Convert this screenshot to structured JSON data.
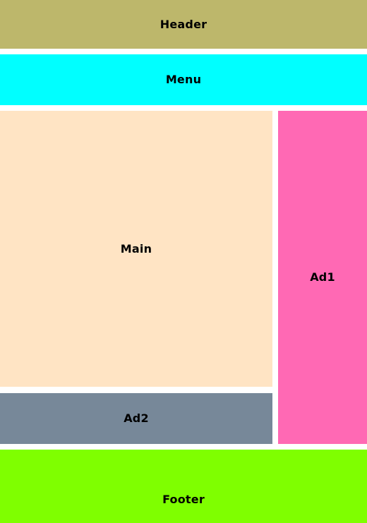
{
  "layout": {
    "header": {
      "label": "Header",
      "color": "#bdb76b"
    },
    "menu": {
      "label": "Menu",
      "color": "#00ffff"
    },
    "main": {
      "label": "Main",
      "color": "#ffe4c4"
    },
    "ad1": {
      "label": "Ad1",
      "color": "#ff69b4"
    },
    "ad2": {
      "label": "Ad2",
      "color": "#778899"
    },
    "footer": {
      "label": "Footer",
      "color": "#7fff00"
    }
  }
}
